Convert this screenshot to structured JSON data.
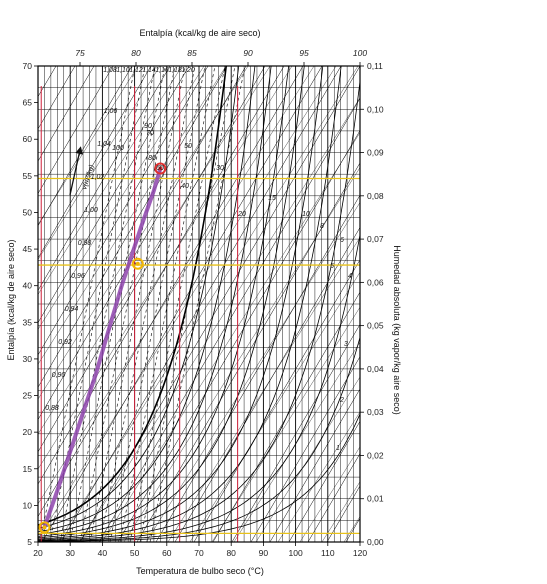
{
  "chart_data": {
    "type": "line",
    "title": "",
    "top_axis": {
      "label": "Entalpía (kcal/kg de aire seco)",
      "ticks": [
        "75",
        "80",
        "85",
        "90",
        "95",
        "100"
      ]
    },
    "left_axis": {
      "label": "Entalpía (kcal/kg de aire seco)",
      "ylim": [
        5,
        70
      ],
      "ticks": [
        "5",
        "10",
        "15",
        "20",
        "25",
        "30",
        "35",
        "40",
        "45",
        "50",
        "55",
        "60",
        "65",
        "70"
      ]
    },
    "bottom_axis": {
      "label": "Temperatura de bulbo seco (°C)",
      "xlim": [
        20,
        120
      ],
      "ticks": [
        "20",
        "30",
        "40",
        "50",
        "60",
        "70",
        "80",
        "90",
        "100",
        "110",
        "120"
      ]
    },
    "right_axis": {
      "label": "Humedad absoluta (kg vapor/kg aire seco)",
      "ylim": [
        0,
        0.11
      ],
      "ticks": [
        "0,00",
        "0,01",
        "0,02",
        "0,03",
        "0,04",
        "0,05",
        "0,06",
        "0,07",
        "0,08",
        "0,09",
        "0,10",
        "0,11"
      ]
    },
    "humid_volume_labels": [
      "0,88",
      "0,90",
      "0,92",
      "0,94",
      "0,96",
      "0,98",
      "1,00",
      "1,02",
      "1,04",
      "1,06",
      "1,08",
      "1,10",
      "1,12",
      "1,14",
      "1,16",
      "1,18",
      "1,20"
    ],
    "relative_humidity_labels": [
      "100",
      "90",
      "80",
      "70",
      "60",
      "50",
      "40",
      "30",
      "20",
      "15",
      "10",
      "8",
      "6",
      "5",
      "4",
      "3",
      "2",
      "1"
    ],
    "volume_arrow_label": "v(m³/kg)",
    "process_path": {
      "name": "",
      "color": "#8e44ad",
      "points": [
        [
          22,
          7
        ],
        [
          26,
          12
        ],
        [
          32,
          20
        ],
        [
          38,
          28
        ],
        [
          42,
          34
        ],
        [
          46,
          40
        ],
        [
          52,
          48
        ],
        [
          56,
          53
        ],
        [
          58,
          56
        ]
      ]
    },
    "marked_points": [
      {
        "x": 22,
        "y": 7,
        "color": "#f2b705"
      },
      {
        "x": 51,
        "y": 43,
        "color": "#f2b705"
      },
      {
        "x": 58,
        "y": 56,
        "color": "#e03030"
      }
    ],
    "red_verticals_temp": [
      21,
      50,
      64,
      82
    ],
    "yellow_humidity_lines": [
      0.002,
      0.064,
      0.084
    ],
    "grid": true
  }
}
